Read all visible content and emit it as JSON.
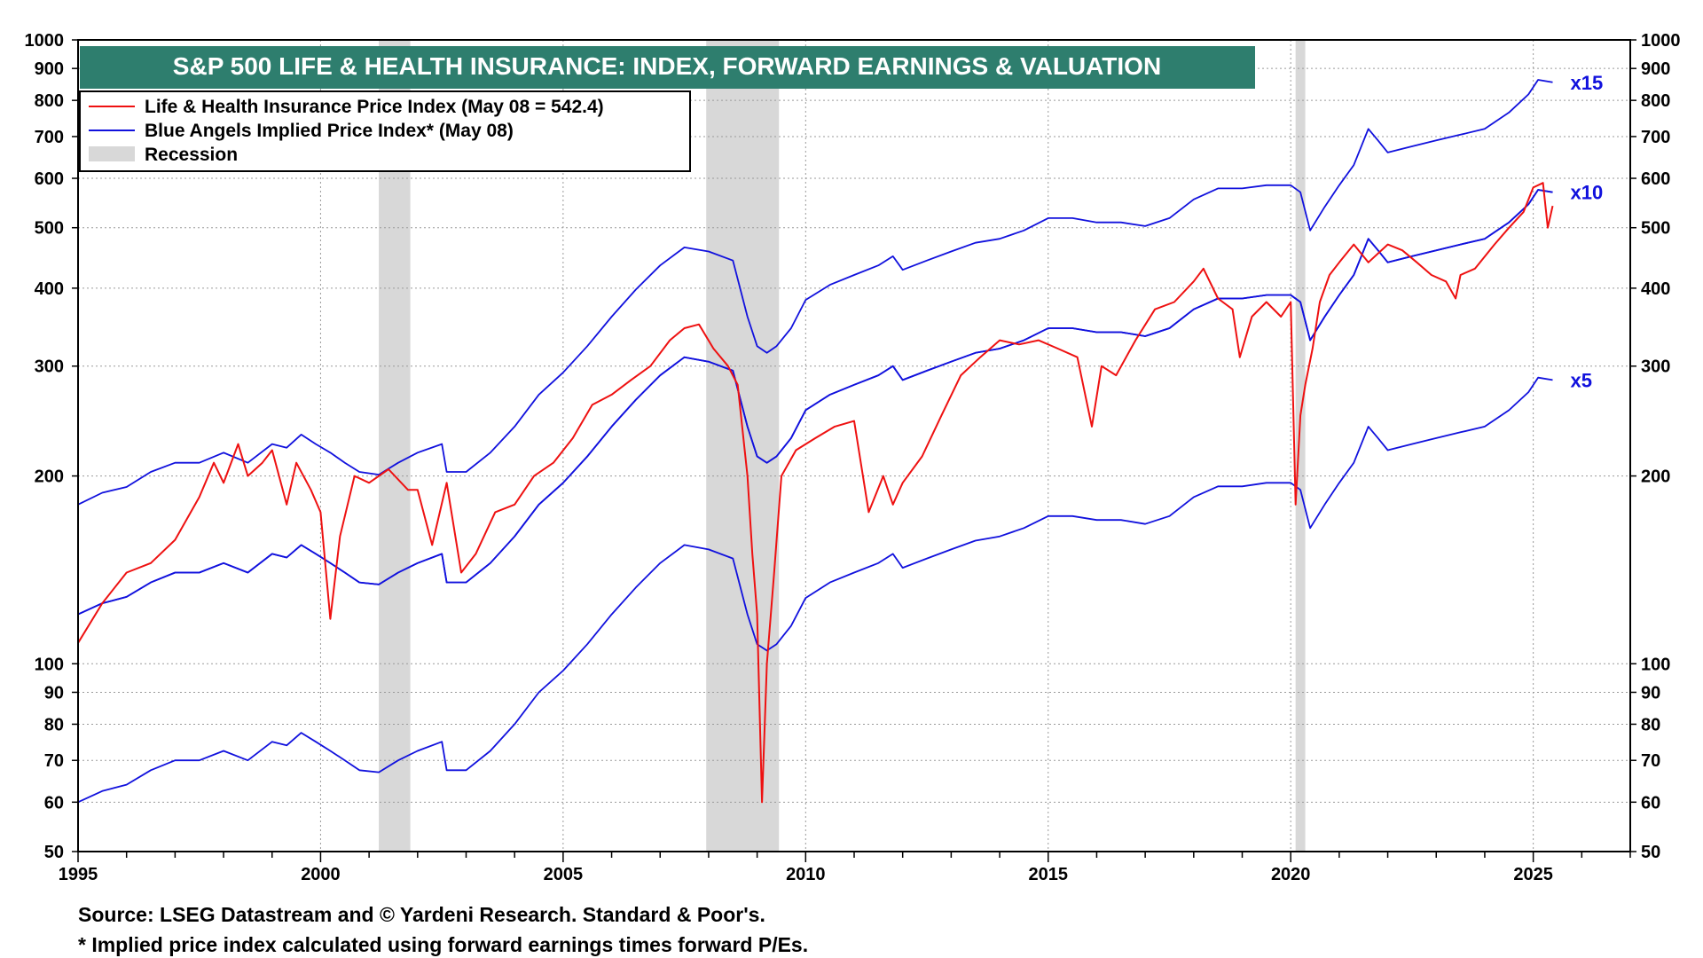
{
  "chart_data": {
    "type": "line",
    "title": "S&P 500 LIFE & HEALTH INSURANCE: INDEX, FORWARD EARNINGS & VALUATION",
    "y_scale": "log",
    "xlim": [
      1995,
      2027
    ],
    "ylim": [
      50,
      1000
    ],
    "grid": true,
    "legend_position": "top-left",
    "x_ticks": [
      1995,
      2000,
      2005,
      2010,
      2015,
      2020,
      2025
    ],
    "y_ticks": [
      50,
      60,
      70,
      80,
      90,
      100,
      200,
      300,
      400,
      500,
      600,
      700,
      800,
      900,
      1000
    ],
    "legend": [
      {
        "label": "Life & Health Insurance Price Index (May 08 = 542.4)",
        "color": "#ee1111",
        "kind": "line"
      },
      {
        "label": "Blue Angels Implied Price Index* (May 08)",
        "color": "#1111dd",
        "kind": "line"
      },
      {
        "label": "Recession",
        "color": "#d8d8d8",
        "kind": "swatch"
      }
    ],
    "recessions": [
      [
        2001.2,
        2001.85
      ],
      [
        2007.95,
        2009.45
      ],
      [
        2020.1,
        2020.3
      ]
    ],
    "series": [
      {
        "name": "Life & Health Insurance Price Index (May 08 = 542.4)",
        "color": "#ee1111",
        "x": [
          1995.0,
          1995.5,
          1996.0,
          1996.5,
          1997.0,
          1997.5,
          1997.8,
          1998.0,
          1998.3,
          1998.5,
          1998.8,
          1999.0,
          1999.3,
          1999.5,
          1999.8,
          2000.0,
          2000.2,
          2000.4,
          2000.7,
          2001.0,
          2001.4,
          2001.8,
          2002.0,
          2002.3,
          2002.6,
          2002.9,
          2003.2,
          2003.6,
          2004.0,
          2004.4,
          2004.8,
          2005.2,
          2005.6,
          2006.0,
          2006.4,
          2006.8,
          2007.2,
          2007.5,
          2007.8,
          2008.1,
          2008.4,
          2008.6,
          2008.8,
          2008.9,
          2009.0,
          2009.1,
          2009.2,
          2009.35,
          2009.5,
          2009.8,
          2010.2,
          2010.6,
          2011.0,
          2011.3,
          2011.6,
          2011.8,
          2012.0,
          2012.4,
          2012.8,
          2013.2,
          2013.6,
          2014.0,
          2014.4,
          2014.8,
          2015.2,
          2015.6,
          2015.9,
          2016.1,
          2016.4,
          2016.8,
          2017.2,
          2017.6,
          2018.0,
          2018.2,
          2018.5,
          2018.8,
          2018.95,
          2019.2,
          2019.5,
          2019.8,
          2020.0,
          2020.1,
          2020.2,
          2020.3,
          2020.45,
          2020.6,
          2020.8,
          2021.0,
          2021.3,
          2021.6,
          2022.0,
          2022.3,
          2022.6,
          2022.9,
          2023.2,
          2023.4,
          2023.5,
          2023.8,
          2024.2,
          2024.5,
          2024.8,
          2025.0,
          2025.2,
          2025.3,
          2025.4
        ],
        "y": [
          108,
          125,
          140,
          145,
          158,
          185,
          210,
          195,
          225,
          200,
          210,
          220,
          180,
          210,
          190,
          175,
          118,
          160,
          200,
          195,
          205,
          190,
          190,
          155,
          195,
          140,
          150,
          175,
          180,
          200,
          210,
          230,
          260,
          270,
          285,
          300,
          330,
          345,
          350,
          320,
          300,
          280,
          200,
          150,
          120,
          60,
          100,
          140,
          200,
          220,
          230,
          240,
          245,
          175,
          200,
          180,
          195,
          215,
          250,
          290,
          310,
          330,
          325,
          330,
          320,
          310,
          240,
          300,
          290,
          330,
          370,
          380,
          410,
          430,
          385,
          370,
          310,
          360,
          380,
          360,
          380,
          180,
          250,
          280,
          320,
          380,
          420,
          440,
          470,
          440,
          470,
          460,
          440,
          420,
          410,
          385,
          420,
          430,
          470,
          500,
          530,
          580,
          590,
          500,
          542
        ]
      },
      {
        "name": "Blue Angels Implied Price Index* (May 08)",
        "color": "#1111dd",
        "x": [
          1995.0,
          1995.5,
          1996.0,
          1996.5,
          1997.0,
          1997.5,
          1998.0,
          1998.5,
          1999.0,
          1999.3,
          1999.6,
          1999.9,
          2000.2,
          2000.5,
          2000.8,
          2001.2,
          2001.6,
          2002.0,
          2002.5,
          2002.6,
          2003.0,
          2003.5,
          2004.0,
          2004.5,
          2005.0,
          2005.5,
          2006.0,
          2006.5,
          2007.0,
          2007.5,
          2008.0,
          2008.5,
          2008.8,
          2009.0,
          2009.2,
          2009.4,
          2009.7,
          2010.0,
          2010.5,
          2011.0,
          2011.5,
          2011.8,
          2012.0,
          2012.5,
          2013.0,
          2013.5,
          2014.0,
          2014.5,
          2015.0,
          2015.5,
          2016.0,
          2016.5,
          2017.0,
          2017.5,
          2018.0,
          2018.5,
          2019.0,
          2019.5,
          2020.0,
          2020.2,
          2020.4,
          2020.7,
          2021.0,
          2021.3,
          2021.6,
          2021.8,
          2022.0,
          2022.5,
          2023.0,
          2023.5,
          2024.0,
          2024.5,
          2024.9,
          2025.1,
          2025.4
        ],
        "y": [
          120,
          125,
          128,
          135,
          140,
          140,
          145,
          140,
          150,
          148,
          155,
          150,
          145,
          140,
          135,
          134,
          140,
          145,
          150,
          135,
          135,
          145,
          160,
          180,
          195,
          215,
          240,
          265,
          290,
          310,
          305,
          295,
          240,
          215,
          210,
          215,
          230,
          255,
          270,
          280,
          290,
          300,
          285,
          295,
          305,
          315,
          320,
          330,
          345,
          345,
          340,
          340,
          335,
          345,
          370,
          385,
          385,
          390,
          390,
          380,
          330,
          360,
          390,
          420,
          480,
          460,
          440,
          450,
          460,
          470,
          480,
          510,
          545,
          575,
          570
        ]
      },
      {
        "name": "x15",
        "color": "#1111dd",
        "x": [
          1995.0,
          1995.5,
          1996.0,
          1996.5,
          1997.0,
          1997.5,
          1998.0,
          1998.5,
          1999.0,
          1999.3,
          1999.6,
          1999.9,
          2000.2,
          2000.5,
          2000.8,
          2001.2,
          2001.6,
          2002.0,
          2002.5,
          2002.6,
          2003.0,
          2003.5,
          2004.0,
          2004.5,
          2005.0,
          2005.5,
          2006.0,
          2006.5,
          2007.0,
          2007.5,
          2008.0,
          2008.5,
          2008.8,
          2009.0,
          2009.2,
          2009.4,
          2009.7,
          2010.0,
          2010.5,
          2011.0,
          2011.5,
          2011.8,
          2012.0,
          2012.5,
          2013.0,
          2013.5,
          2014.0,
          2014.5,
          2015.0,
          2015.5,
          2016.0,
          2016.5,
          2017.0,
          2017.5,
          2018.0,
          2018.5,
          2019.0,
          2019.5,
          2020.0,
          2020.2,
          2020.4,
          2020.7,
          2021.0,
          2021.3,
          2021.6,
          2021.8,
          2022.0,
          2022.5,
          2023.0,
          2023.5,
          2024.0,
          2024.5,
          2024.9,
          2025.1,
          2025.4
        ],
        "y": [
          180,
          188,
          192,
          203,
          210,
          210,
          218,
          210,
          225,
          222,
          233,
          225,
          218,
          210,
          203,
          201,
          210,
          218,
          225,
          203,
          203,
          218,
          240,
          270,
          293,
          323,
          360,
          398,
          435,
          465,
          458,
          443,
          360,
          323,
          315,
          323,
          345,
          383,
          405,
          420,
          435,
          450,
          428,
          443,
          458,
          473,
          480,
          495,
          518,
          518,
          510,
          510,
          503,
          518,
          555,
          578,
          578,
          585,
          585,
          570,
          495,
          540,
          585,
          630,
          720,
          690,
          660,
          675,
          690,
          705,
          720,
          765,
          818,
          863,
          855
        ]
      },
      {
        "name": "x10",
        "color": "#1111dd",
        "x": [
          1995.0,
          1995.5,
          1996.0,
          1996.5,
          1997.0,
          1997.5,
          1998.0,
          1998.5,
          1999.0,
          1999.3,
          1999.6,
          1999.9,
          2000.2,
          2000.5,
          2000.8,
          2001.2,
          2001.6,
          2002.0,
          2002.5,
          2002.6,
          2003.0,
          2003.5,
          2004.0,
          2004.5,
          2005.0,
          2005.5,
          2006.0,
          2006.5,
          2007.0,
          2007.5,
          2008.0,
          2008.5,
          2008.8,
          2009.0,
          2009.2,
          2009.4,
          2009.7,
          2010.0,
          2010.5,
          2011.0,
          2011.5,
          2011.8,
          2012.0,
          2012.5,
          2013.0,
          2013.5,
          2014.0,
          2014.5,
          2015.0,
          2015.5,
          2016.0,
          2016.5,
          2017.0,
          2017.5,
          2018.0,
          2018.5,
          2019.0,
          2019.5,
          2020.0,
          2020.2,
          2020.4,
          2020.7,
          2021.0,
          2021.3,
          2021.6,
          2021.8,
          2022.0,
          2022.5,
          2023.0,
          2023.5,
          2024.0,
          2024.5,
          2024.9,
          2025.1,
          2025.4
        ],
        "y": [
          120,
          125,
          128,
          135,
          140,
          140,
          145,
          140,
          150,
          148,
          155,
          150,
          145,
          140,
          135,
          134,
          140,
          145,
          150,
          135,
          135,
          145,
          160,
          180,
          195,
          215,
          240,
          265,
          290,
          310,
          305,
          295,
          240,
          215,
          210,
          215,
          230,
          255,
          270,
          280,
          290,
          300,
          285,
          295,
          305,
          315,
          320,
          330,
          345,
          345,
          340,
          340,
          335,
          345,
          370,
          385,
          385,
          390,
          390,
          380,
          330,
          360,
          390,
          420,
          480,
          460,
          440,
          450,
          460,
          470,
          480,
          510,
          545,
          575,
          570
        ]
      },
      {
        "name": "x5",
        "color": "#1111dd",
        "x": [
          1995.0,
          1995.5,
          1996.0,
          1996.5,
          1997.0,
          1997.5,
          1998.0,
          1998.5,
          1999.0,
          1999.3,
          1999.6,
          1999.9,
          2000.2,
          2000.5,
          2000.8,
          2001.2,
          2001.6,
          2002.0,
          2002.5,
          2002.6,
          2003.0,
          2003.5,
          2004.0,
          2004.5,
          2005.0,
          2005.5,
          2006.0,
          2006.5,
          2007.0,
          2007.5,
          2008.0,
          2008.5,
          2008.8,
          2009.0,
          2009.2,
          2009.4,
          2009.7,
          2010.0,
          2010.5,
          2011.0,
          2011.5,
          2011.8,
          2012.0,
          2012.5,
          2013.0,
          2013.5,
          2014.0,
          2014.5,
          2015.0,
          2015.5,
          2016.0,
          2016.5,
          2017.0,
          2017.5,
          2018.0,
          2018.5,
          2019.0,
          2019.5,
          2020.0,
          2020.2,
          2020.4,
          2020.7,
          2021.0,
          2021.3,
          2021.6,
          2021.8,
          2022.0,
          2022.5,
          2023.0,
          2023.5,
          2024.0,
          2024.5,
          2024.9,
          2025.1,
          2025.4
        ],
        "y": [
          60,
          62.5,
          64,
          67.5,
          70,
          70,
          72.5,
          70,
          75,
          74,
          77.5,
          75,
          72.5,
          70,
          67.5,
          67,
          70,
          72.5,
          75,
          67.5,
          67.5,
          72.5,
          80,
          90,
          97.5,
          107.5,
          120,
          132.5,
          145,
          155,
          152.5,
          147.5,
          120,
          107.5,
          105,
          107.5,
          115,
          127.5,
          135,
          140,
          145,
          150,
          142.5,
          147.5,
          152.5,
          157.5,
          160,
          165,
          172.5,
          172.5,
          170,
          170,
          167.5,
          172.5,
          185,
          192.5,
          192.5,
          195,
          195,
          190,
          165,
          180,
          195,
          210,
          240,
          230,
          220,
          225,
          230,
          235,
          240,
          255,
          272.5,
          287.5,
          285
        ]
      }
    ],
    "line_labels": [
      {
        "series": "x15",
        "text": "x15"
      },
      {
        "series": "x10",
        "text": "x10"
      },
      {
        "series": "x5",
        "text": "x5"
      }
    ],
    "footnotes": [
      "Source: LSEG Datastream and © Yardeni Research. Standard & Poor's.",
      "* Implied price index calculated using forward earnings times forward P/Es."
    ]
  }
}
